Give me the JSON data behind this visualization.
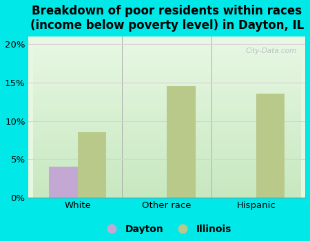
{
  "title": "Breakdown of poor residents within races\n(income below poverty level) in Dayton, IL",
  "categories": [
    "White",
    "Other race",
    "Hispanic"
  ],
  "dayton_values": [
    4.0,
    0.0,
    0.0
  ],
  "illinois_values": [
    8.5,
    14.5,
    13.5
  ],
  "dayton_color": "#c4a8d4",
  "illinois_color": "#b8c98a",
  "background_color": "#00e8e8",
  "plot_bg_top": "#c8e8c0",
  "plot_bg_bottom": "#e8f8e0",
  "grid_color": "#ddd0d8",
  "title_fontsize": 12,
  "tick_fontsize": 9.5,
  "legend_fontsize": 10,
  "ylim": [
    0,
    21
  ],
  "yticks": [
    0,
    5,
    10,
    15,
    20
  ],
  "bar_width": 0.32,
  "watermark": "City-Data.com"
}
